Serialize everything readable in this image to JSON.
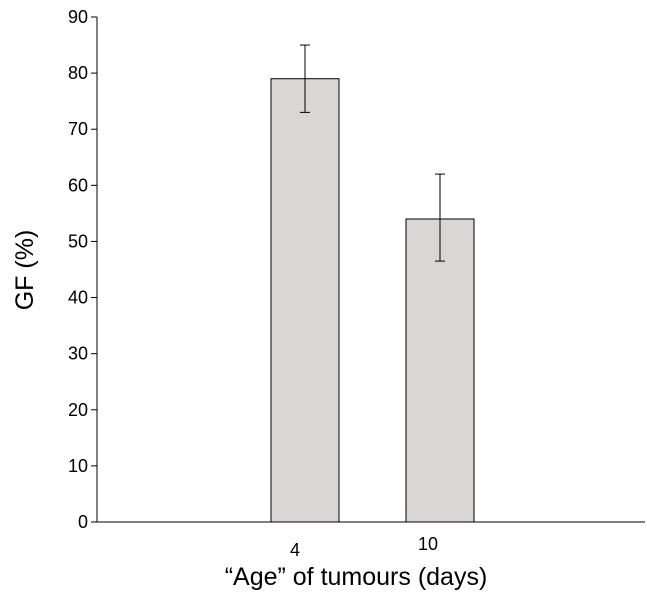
{
  "chart_data": {
    "type": "bar",
    "title": "",
    "xlabel": "“Age” of tumours (days)",
    "ylabel": "GF (%)",
    "categories": [
      "4",
      "10"
    ],
    "values": [
      79,
      54
    ],
    "error_low": [
      73,
      46.5
    ],
    "error_high": [
      85,
      62
    ],
    "ylim": [
      0,
      90
    ],
    "yticks": [
      "0",
      "10",
      "20",
      "30",
      "40",
      "50",
      "60",
      "70",
      "80",
      "90"
    ],
    "bar_color": "#d9d6d3",
    "grid": false,
    "legend": "none"
  }
}
